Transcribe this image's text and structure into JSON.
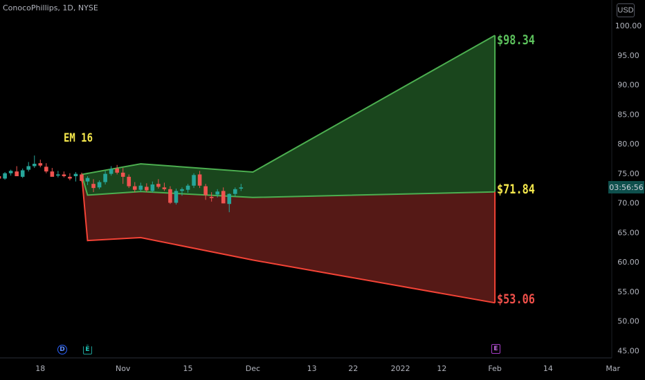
{
  "header": {
    "symbol": "ConocoPhillips, 1D, NYSE",
    "currency": "USD"
  },
  "annotations": {
    "em_label": "EM 16",
    "upper_target": "$98.34",
    "current_price": "$71.84",
    "lower_target": "$53.06",
    "countdown": "03:56:56"
  },
  "events": {
    "dividend": "D",
    "earnings_1": "E",
    "earnings_2": "E"
  },
  "colors": {
    "background": "#000000",
    "up_candle": "#26a69a",
    "down_candle": "#ef5350",
    "upper_band": "#4caf50",
    "upper_fill": "#1b4a1f",
    "lower_band": "#f44336",
    "lower_fill": "#5a1a17",
    "label_yellow": "#f5e84c",
    "axis_text": "#b2b5be"
  },
  "chart_data": {
    "type": "candlestick",
    "title": "ConocoPhillips, 1D, NYSE",
    "y_axis": {
      "min": 45,
      "max": 100,
      "ticks": [
        "100.00",
        "95.00",
        "90.00",
        "85.00",
        "80.00",
        "75.00",
        "70.00",
        "65.00",
        "60.00",
        "55.00",
        "50.00",
        "45.00"
      ],
      "position": "right"
    },
    "x_axis": {
      "tick_labels": [
        "18",
        "Nov",
        "15",
        "Dec",
        "13",
        "22",
        "2022",
        "12",
        "Feb",
        "14",
        "Mar"
      ],
      "tick_day_index": [
        -7,
        7,
        18,
        29,
        39,
        46,
        54,
        61,
        70,
        79,
        90
      ]
    },
    "candles": [
      {
        "d": -19,
        "o": 72.9,
        "h": 73.2,
        "l": 72.2,
        "c": 72.6
      },
      {
        "d": -18,
        "o": 72.7,
        "h": 73.6,
        "l": 72.5,
        "c": 73.4
      },
      {
        "d": -17,
        "o": 73.4,
        "h": 74.0,
        "l": 73.1,
        "c": 73.7
      },
      {
        "d": -16,
        "o": 73.6,
        "h": 74.5,
        "l": 73.4,
        "c": 74.2
      },
      {
        "d": -15,
        "o": 74.1,
        "h": 74.9,
        "l": 73.8,
        "c": 74.6
      },
      {
        "d": -14,
        "o": 74.5,
        "h": 75.4,
        "l": 74.2,
        "c": 74.1
      },
      {
        "d": -13,
        "o": 74.1,
        "h": 75.2,
        "l": 73.9,
        "c": 75.0
      },
      {
        "d": -12,
        "o": 75.0,
        "h": 75.6,
        "l": 74.6,
        "c": 75.4
      },
      {
        "d": -11,
        "o": 75.3,
        "h": 76.2,
        "l": 75.0,
        "c": 74.5
      },
      {
        "d": -10,
        "o": 74.4,
        "h": 75.8,
        "l": 74.2,
        "c": 75.5
      },
      {
        "d": -9,
        "o": 75.6,
        "h": 76.9,
        "l": 75.3,
        "c": 76.2
      },
      {
        "d": -8,
        "o": 76.2,
        "h": 78.0,
        "l": 75.9,
        "c": 76.6
      },
      {
        "d": -7,
        "o": 76.7,
        "h": 77.3,
        "l": 76.0,
        "c": 76.3
      },
      {
        "d": -6,
        "o": 76.1,
        "h": 76.7,
        "l": 75.0,
        "c": 75.3
      },
      {
        "d": -5,
        "o": 75.3,
        "h": 75.9,
        "l": 74.5,
        "c": 74.4
      },
      {
        "d": -4,
        "o": 74.6,
        "h": 75.4,
        "l": 74.3,
        "c": 74.8
      },
      {
        "d": -3,
        "o": 74.8,
        "h": 75.3,
        "l": 74.3,
        "c": 74.5
      },
      {
        "d": -2,
        "o": 74.4,
        "h": 75.0,
        "l": 73.8,
        "c": 74.1
      },
      {
        "d": -1,
        "o": 74.5,
        "h": 75.2,
        "l": 73.6,
        "c": 74.9
      },
      {
        "d": 0,
        "o": 74.8,
        "h": 75.1,
        "l": 73.5,
        "c": 73.7
      },
      {
        "d": 1,
        "o": 73.6,
        "h": 74.5,
        "l": 73.0,
        "c": 74.2
      },
      {
        "d": 2,
        "o": 73.2,
        "h": 74.0,
        "l": 71.8,
        "c": 72.5
      },
      {
        "d": 3,
        "o": 72.6,
        "h": 73.8,
        "l": 72.3,
        "c": 73.5
      },
      {
        "d": 4,
        "o": 73.5,
        "h": 75.4,
        "l": 73.1,
        "c": 74.9
      },
      {
        "d": 5,
        "o": 74.9,
        "h": 76.2,
        "l": 74.6,
        "c": 75.7
      },
      {
        "d": 6,
        "o": 75.8,
        "h": 76.4,
        "l": 74.8,
        "c": 75.1
      },
      {
        "d": 7,
        "o": 75.1,
        "h": 75.9,
        "l": 73.2,
        "c": 74.4
      },
      {
        "d": 8,
        "o": 74.4,
        "h": 74.8,
        "l": 72.5,
        "c": 72.8
      },
      {
        "d": 9,
        "o": 72.8,
        "h": 73.5,
        "l": 71.8,
        "c": 72.2
      },
      {
        "d": 10,
        "o": 72.2,
        "h": 73.4,
        "l": 71.9,
        "c": 72.9
      },
      {
        "d": 11,
        "o": 72.7,
        "h": 73.3,
        "l": 71.8,
        "c": 72.1
      },
      {
        "d": 12,
        "o": 72.0,
        "h": 73.6,
        "l": 71.7,
        "c": 73.1
      },
      {
        "d": 13,
        "o": 73.2,
        "h": 74.0,
        "l": 72.4,
        "c": 72.7
      },
      {
        "d": 14,
        "o": 72.6,
        "h": 73.4,
        "l": 72.0,
        "c": 72.3
      },
      {
        "d": 15,
        "o": 72.3,
        "h": 72.8,
        "l": 69.8,
        "c": 70.0
      },
      {
        "d": 16,
        "o": 70.0,
        "h": 72.4,
        "l": 69.7,
        "c": 72.0
      },
      {
        "d": 17,
        "o": 72.0,
        "h": 72.6,
        "l": 71.2,
        "c": 72.3
      },
      {
        "d": 18,
        "o": 72.2,
        "h": 73.2,
        "l": 71.7,
        "c": 72.9
      },
      {
        "d": 19,
        "o": 72.9,
        "h": 75.0,
        "l": 72.5,
        "c": 74.7
      },
      {
        "d": 20,
        "o": 74.8,
        "h": 75.4,
        "l": 72.5,
        "c": 72.9
      },
      {
        "d": 21,
        "o": 72.8,
        "h": 73.2,
        "l": 70.5,
        "c": 71.3
      },
      {
        "d": 22,
        "o": 71.0,
        "h": 71.8,
        "l": 70.2,
        "c": 70.8
      },
      {
        "d": 23,
        "o": 71.4,
        "h": 72.3,
        "l": 70.9,
        "c": 71.9
      },
      {
        "d": 24,
        "o": 72.0,
        "h": 72.6,
        "l": 69.9,
        "c": 69.9
      },
      {
        "d": 25,
        "o": 69.8,
        "h": 71.6,
        "l": 68.4,
        "c": 71.5
      },
      {
        "d": 26,
        "o": 71.5,
        "h": 72.6,
        "l": 71.0,
        "c": 72.3
      },
      {
        "d": 27,
        "o": 72.4,
        "h": 73.2,
        "l": 72.0,
        "c": 72.6
      }
    ],
    "expected_move": {
      "label": "EM 16",
      "upper": [
        [
          0,
          74.8
        ],
        [
          10,
          76.6
        ],
        [
          29,
          75.2
        ],
        [
          70,
          98.34
        ]
      ],
      "middle": [
        [
          0,
          74.8
        ],
        [
          1,
          71.3
        ],
        [
          10,
          71.9
        ],
        [
          29,
          70.9
        ],
        [
          70,
          71.84
        ]
      ],
      "lower": [
        [
          0,
          74.8
        ],
        [
          1,
          63.6
        ],
        [
          10,
          64.1
        ],
        [
          29,
          60.3
        ],
        [
          70,
          53.06
        ]
      ],
      "upper_value": 98.34,
      "middle_value": 71.84,
      "lower_value": 53.06
    },
    "legend": "none",
    "grid": false
  }
}
